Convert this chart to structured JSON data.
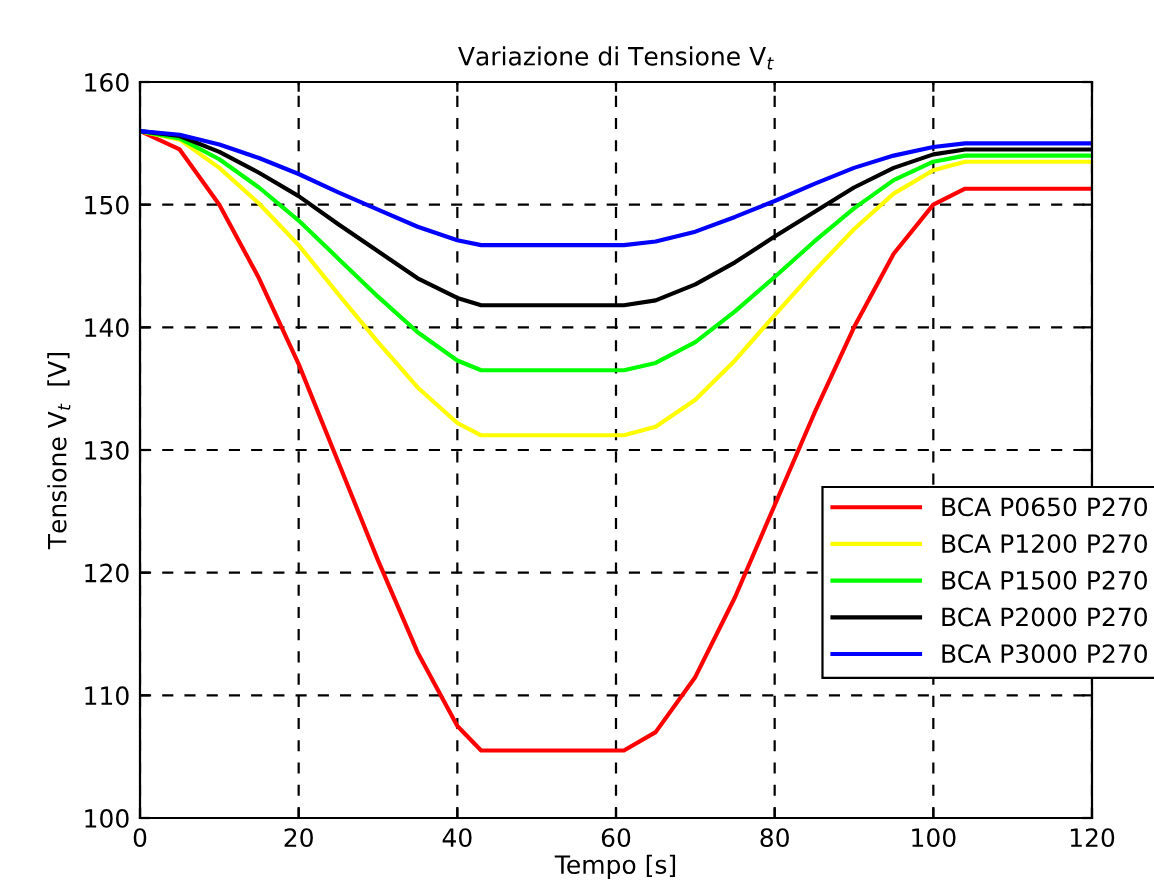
{
  "chart_data": {
    "type": "line",
    "title": "Variazione di Tensione V$_{t}$",
    "xlabel": "Tempo [s]",
    "ylabel": "Tensione V$_{t}$  [V]",
    "x": [
      0,
      5,
      10,
      15,
      20,
      25,
      30,
      35,
      40,
      43,
      61,
      65,
      70,
      75,
      80,
      85,
      90,
      95,
      100,
      104,
      120
    ],
    "series": [
      {
        "name": "BCA P0650 P270",
        "color": "#ff0000",
        "values": [
          156,
          154.5,
          150,
          144,
          137,
          129,
          121,
          113.5,
          107.5,
          105.5,
          105.5,
          107,
          111.5,
          118,
          125.5,
          133,
          140,
          146,
          150,
          151.3,
          151.3
        ]
      },
      {
        "name": "BCA P1200 P270",
        "color": "#ffff00",
        "values": [
          156,
          155.3,
          153,
          150.1,
          146.7,
          142.7,
          138.8,
          135.1,
          132.2,
          131.2,
          131.2,
          131.9,
          134.1,
          137.3,
          141,
          144.6,
          148,
          150.9,
          152.8,
          153.5,
          153.5
        ]
      },
      {
        "name": "BCA P1500 P270",
        "color": "#00ff00",
        "values": [
          156,
          155.4,
          153.7,
          151.4,
          148.7,
          145.6,
          142.5,
          139.6,
          137.3,
          136.5,
          136.5,
          137.1,
          138.8,
          141.3,
          144.1,
          147,
          149.7,
          152,
          153.5,
          154,
          154
        ]
      },
      {
        "name": "BCA P2000 P270",
        "color": "#000000",
        "values": [
          156,
          155.6,
          154.3,
          152.6,
          150.7,
          148.4,
          146.2,
          144,
          142.4,
          141.8,
          141.8,
          142.2,
          143.5,
          145.3,
          147.4,
          149.4,
          151.4,
          153,
          154.1,
          154.5,
          154.5
        ]
      },
      {
        "name": "BCA P3000 P270",
        "color": "#0000ff",
        "values": [
          156,
          155.7,
          154.9,
          153.8,
          152.5,
          151,
          149.6,
          148.2,
          147.1,
          146.7,
          146.7,
          147,
          147.8,
          149,
          150.3,
          151.7,
          153,
          154,
          154.7,
          155,
          155
        ]
      }
    ],
    "xlim": [
      0,
      120
    ],
    "xticks": [
      0,
      20,
      40,
      60,
      80,
      100,
      120
    ],
    "ylim": [
      100,
      160
    ],
    "yticks": [
      100,
      110,
      120,
      130,
      140,
      150,
      160
    ],
    "grid": true,
    "legend": "right",
    "line_style": "solid",
    "marker": "none"
  }
}
